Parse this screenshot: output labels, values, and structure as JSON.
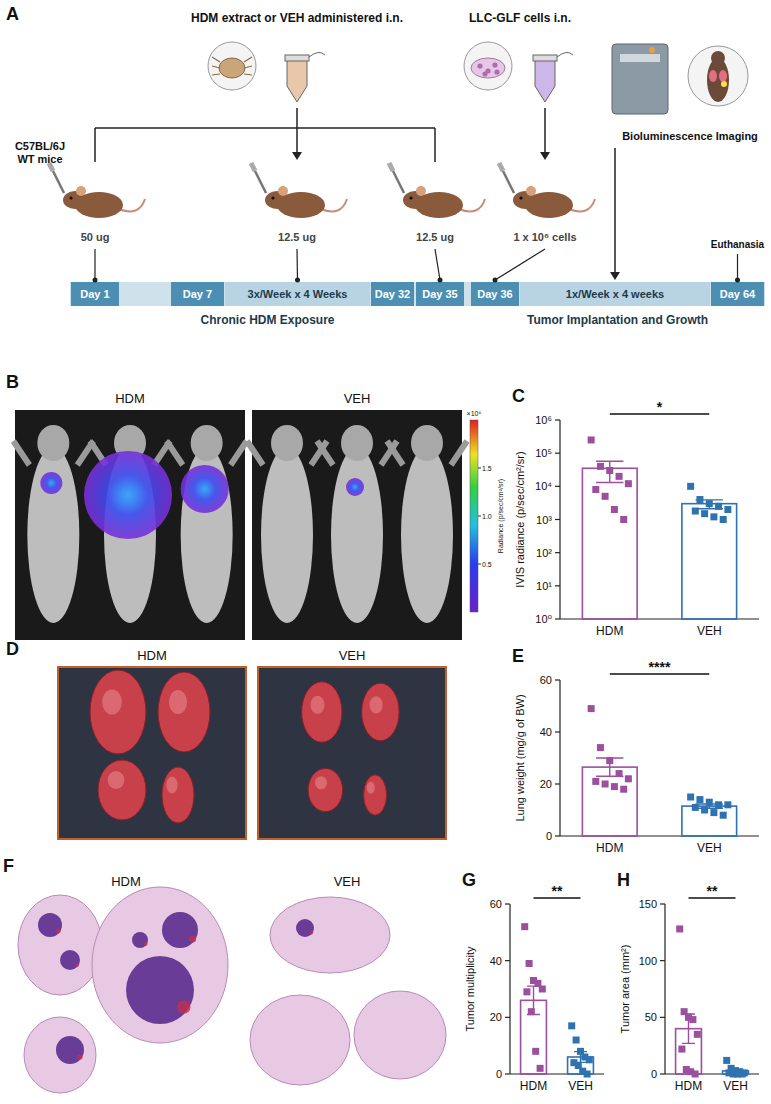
{
  "schematic": {
    "letter": "A",
    "hdm_label": "HDM extract or VEH administered i.n.",
    "cells_label": "LLC-GLF cells i.n.",
    "imaging_label": "Bioluminescence Imaging",
    "mice_label": "C57BL/6J WT mice",
    "doses": [
      "50 ug",
      "12.5 ug",
      "12.5 ug",
      "1 x 10⁶ cells"
    ],
    "timeline": [
      {
        "text": "Day 1",
        "kind": "day"
      },
      {
        "kind": "gap"
      },
      {
        "text": "Day 7",
        "kind": "day"
      },
      {
        "text": "3x/Week x 4 Weeks",
        "kind": "span"
      },
      {
        "text": "Day 32",
        "kind": "day"
      },
      {
        "text": "Day 35",
        "kind": "day"
      },
      {
        "kind": "gap"
      },
      {
        "text": "Day 36",
        "kind": "day"
      },
      {
        "text": "1x/Week x 4 weeks",
        "kind": "span"
      },
      {
        "text": "Day 64",
        "kind": "day"
      }
    ],
    "phases": [
      "Chronic HDM Exposure",
      "Tumor Implantation and Growth"
    ],
    "end_label": "Euthanasia"
  },
  "images": {
    "B": {
      "letter": "B",
      "groups": [
        "HDM",
        "VEH"
      ],
      "colorbar": {
        "title": "Radiance (p/sec/cm²/sr)",
        "range": [
          0,
          2000000
        ],
        "multiplier": "×10⁶",
        "ticks": [
          {
            "value": 1500000,
            "label": "1.5"
          },
          {
            "value": 1000000,
            "label": "1.0"
          },
          {
            "value": 500000,
            "label": "0.5"
          }
        ]
      }
    },
    "D": {
      "letter": "D",
      "groups": [
        "HDM",
        "VEH"
      ]
    },
    "F": {
      "letter": "F",
      "groups": [
        "HDM",
        "VEH"
      ]
    }
  },
  "chart_data": [
    {
      "type": "bar",
      "panel": "C",
      "y_label": "IVIS radiance (p/sec/cm²/sr)",
      "categories": [
        "HDM",
        "VEH"
      ],
      "values": [
        35000,
        3000
      ],
      "errors": [
        22000,
        900
      ],
      "points": [
        [
          250000,
          40000,
          30000,
          20000,
          12000,
          8000,
          5000,
          2000,
          1000
        ],
        [
          10000,
          4000,
          3000,
          2500,
          2000,
          1800,
          1500,
          1200,
          1000
        ]
      ],
      "colors": [
        "#9b4f9e",
        "#2f72b0"
      ],
      "marker": "square",
      "log": "y",
      "significance": "*",
      "ylim": [
        1,
        1000000
      ],
      "yticks": [
        {
          "value": 1,
          "label": "10⁰"
        },
        {
          "value": 10,
          "label": "10¹"
        },
        {
          "value": 100,
          "label": "10²"
        },
        {
          "value": 1000,
          "label": "10³"
        },
        {
          "value": 10000,
          "label": "10⁴"
        },
        {
          "value": 100000,
          "label": "10⁵"
        },
        {
          "value": 1000000,
          "label": "10⁶"
        }
      ]
    },
    {
      "type": "bar",
      "panel": "E",
      "y_label": "Lung weight (mg/g of BW)",
      "categories": [
        "HDM",
        "VEH"
      ],
      "values": [
        26.5,
        11.5
      ],
      "errors": [
        3.5,
        0.8
      ],
      "points": [
        [
          49,
          34,
          29,
          24,
          22,
          21,
          20,
          19,
          18
        ],
        [
          15,
          14,
          13,
          12,
          12,
          11,
          10,
          9,
          8
        ]
      ],
      "colors": [
        "#9b4f9e",
        "#2f72b0"
      ],
      "marker": "square",
      "significance": "****",
      "ylim": [
        0,
        60
      ],
      "yticks": [
        0,
        20,
        40,
        60
      ]
    },
    {
      "type": "bar",
      "panel": "G",
      "y_label": "Tumor multiplicity",
      "categories": [
        "HDM",
        "VEH"
      ],
      "values": [
        26,
        6
      ],
      "errors": [
        5,
        1.9
      ],
      "points": [
        [
          52,
          39,
          33,
          32,
          30,
          29,
          22,
          8,
          2
        ],
        [
          17,
          12,
          8,
          6,
          5,
          4,
          3,
          1,
          0
        ]
      ],
      "colors": [
        "#9b4f9e",
        "#2f72b0"
      ],
      "marker": "square",
      "significance": "**",
      "ylim": [
        0,
        60
      ],
      "yticks": [
        0,
        20,
        40,
        60
      ]
    },
    {
      "type": "bar",
      "panel": "H",
      "y_label": "Tumor area (mm²)",
      "categories": [
        "HDM",
        "VEH"
      ],
      "values": [
        40,
        2.7
      ],
      "errors": [
        13,
        1.3
      ],
      "points": [
        [
          128,
          55,
          50,
          48,
          35,
          22,
          4,
          2,
          0
        ],
        [
          12,
          5,
          3,
          2,
          1,
          1,
          0,
          0,
          0
        ]
      ],
      "colors": [
        "#9b4f9e",
        "#2f72b0"
      ],
      "marker": "square",
      "significance": "**",
      "ylim": [
        0,
        150
      ],
      "yticks": [
        0,
        50,
        100,
        150
      ]
    }
  ]
}
